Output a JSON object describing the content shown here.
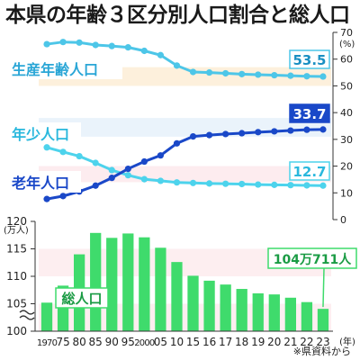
{
  "title": "本県の年齢３区分別人口割合と総人口",
  "source": "※県資料から",
  "chart_data": [
    {
      "type": "line",
      "x": [
        "1970",
        "75",
        "80",
        "85",
        "90",
        "95",
        "2000",
        "05",
        "10",
        "15",
        "16",
        "17",
        "18",
        "19",
        "20",
        "21",
        "22",
        "23"
      ],
      "y_axis": {
        "ylim": [
          0,
          70
        ],
        "ticks": [
          "0",
          "10",
          "20",
          "30",
          "40",
          "50",
          "60",
          "70"
        ],
        "unit": "(%)"
      },
      "series": [
        {
          "name": "生産年齢人口",
          "values": [
            65.6,
            66.4,
            66.2,
            65.3,
            64.9,
            64.4,
            63.1,
            61.5,
            57.6,
            55.2,
            55.0,
            54.7,
            54.4,
            54.2,
            54.0,
            53.8,
            53.6,
            53.5
          ],
          "end_label": "53.5",
          "color": "#4dc6e8"
        },
        {
          "name": "年少人口",
          "values": [
            27.0,
            25.3,
            23.7,
            21.2,
            18.5,
            16.6,
            15.1,
            14.5,
            13.9,
            13.7,
            13.5,
            13.4,
            13.3,
            13.1,
            13.0,
            12.9,
            12.8,
            12.7
          ],
          "end_label": "12.7",
          "color": "#4dd3ec"
        },
        {
          "name": "老年人口",
          "values": [
            7.7,
            8.8,
            10.5,
            12.7,
            15.6,
            19.0,
            21.7,
            24.0,
            28.5,
            31.1,
            31.6,
            32.0,
            32.3,
            32.7,
            33.0,
            33.3,
            33.6,
            33.7
          ],
          "end_label": "33.7",
          "color": "#1a48c8"
        }
      ]
    },
    {
      "type": "bar",
      "categories": [
        "1970",
        "75",
        "80",
        "85",
        "90",
        "95",
        "2000",
        "05",
        "10",
        "15",
        "16",
        "17",
        "18",
        "19",
        "20",
        "21",
        "22",
        "23"
      ],
      "values": [
        105.2,
        108.3,
        114.0,
        117.9,
        117.0,
        117.8,
        117.1,
        115.2,
        112.6,
        110.1,
        109.2,
        108.5,
        107.7,
        106.9,
        106.7,
        106.1,
        105.3,
        104.0711
      ],
      "y_axis": {
        "ylim": [
          100,
          120
        ],
        "ticks": [
          "100",
          "105",
          "110",
          "115",
          "120"
        ],
        "unit": "(万人)"
      },
      "series_label": "総人口",
      "end_label": "104万711人",
      "x_unit": "(年)",
      "color": "#3fdb6c"
    }
  ]
}
